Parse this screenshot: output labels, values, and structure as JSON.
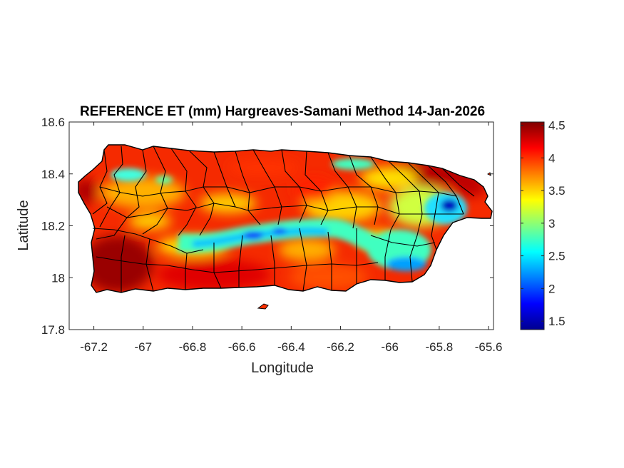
{
  "title": "REFERENCE ET (mm) Hargreaves-Samani Method  14-Jan-2026",
  "map": {
    "region": "Puerto Rico",
    "variable": "Reference evapotranspiration (mm)",
    "xlabel": "Longitude",
    "ylabel": "Latitude",
    "xlim": [
      -67.3,
      -65.58
    ],
    "ylim": [
      17.8,
      18.6
    ],
    "xticks": [
      -67.2,
      -67,
      -66.8,
      -66.6,
      -66.4,
      -66.2,
      -66,
      -65.8,
      -65.6
    ],
    "yticks": [
      17.8,
      18,
      18.2,
      18.4,
      18.6
    ],
    "colormap": "jet",
    "boundaries": "municipality outlines (black)"
  },
  "colorbar": {
    "range": [
      1.37,
      4.55
    ],
    "ticks": [
      1.5,
      2,
      2.5,
      3,
      3.5,
      4,
      4.5
    ],
    "colors": [
      "#00008f",
      "#0000ff",
      "#0080ff",
      "#00ffff",
      "#80ff80",
      "#ffff00",
      "#ff8000",
      "#ff0000",
      "#800000"
    ]
  }
}
